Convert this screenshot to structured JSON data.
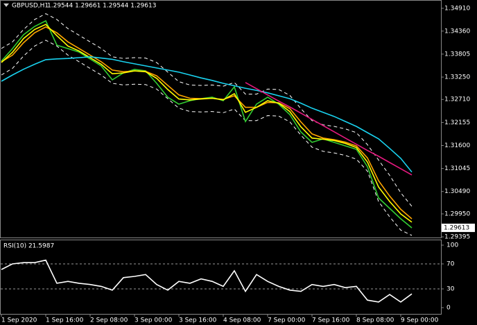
{
  "chart_data": [
    {
      "type": "line",
      "symbol": "GBPUSD,H1",
      "quote": "1.29544 1.29661 1.29544 1.29613",
      "categories": [
        "1 Sep 2020",
        null,
        null,
        null,
        "1 Sep 16:00",
        null,
        null,
        null,
        "2 Sep 08:00",
        null,
        null,
        null,
        "3 Sep 00:00",
        null,
        null,
        null,
        "3 Sep 16:00",
        null,
        null,
        null,
        "4 Sep 08:00",
        null,
        null,
        null,
        "7 Sep 00:00",
        null,
        null,
        null,
        "7 Sep 16:00",
        null,
        null,
        null,
        "8 Sep 08:00",
        null,
        null,
        null,
        "9 Sep 00:00",
        null
      ],
      "ylim": [
        1.2938,
        1.3511
      ],
      "yticks": [
        {
          "value": 1.3491,
          "label": "1.34910"
        },
        {
          "value": 1.3436,
          "label": "1.34360"
        },
        {
          "value": 1.33805,
          "label": "1.33805"
        },
        {
          "value": 1.3325,
          "label": "1.33250"
        },
        {
          "value": 1.3271,
          "label": "1.32710"
        },
        {
          "value": 1.32155,
          "label": "1.32155"
        },
        {
          "value": 1.316,
          "label": "1.31600"
        },
        {
          "value": 1.31045,
          "label": "1.31045"
        },
        {
          "value": 1.3049,
          "label": "1.30490"
        },
        {
          "value": 1.2995,
          "label": "1.29950"
        },
        {
          "value": 1.29395,
          "label": "1.29395"
        }
      ],
      "last_price": 1.29613,
      "series": [
        {
          "color": "#ffffff",
          "dashed": true,
          "values": [
            1.3394,
            1.341,
            1.344,
            1.3464,
            1.3478,
            1.3464,
            1.3442,
            1.3426,
            1.341,
            1.3394,
            1.3374,
            1.337,
            1.3372,
            1.3371,
            1.336,
            1.3337,
            1.3314,
            1.3306,
            1.3305,
            1.3306,
            1.3303,
            1.3312,
            1.3284,
            1.3284,
            1.3296,
            1.3295,
            1.3281,
            1.3249,
            1.322,
            1.321,
            1.3206,
            1.32,
            1.3191,
            1.3162,
            1.3125,
            1.3088,
            1.3046,
            1.3013
          ]
        },
        {
          "color": "#ffffff",
          "dashed": true,
          "values": [
            1.333,
            1.3346,
            1.3376,
            1.34,
            1.3414,
            1.34,
            1.3378,
            1.3362,
            1.3346,
            1.333,
            1.331,
            1.3306,
            1.3308,
            1.3307,
            1.3296,
            1.3273,
            1.325,
            1.3242,
            1.3241,
            1.3242,
            1.3239,
            1.3248,
            1.322,
            1.322,
            1.3232,
            1.3231,
            1.3217,
            1.3185,
            1.3156,
            1.3146,
            1.3142,
            1.3136,
            1.3127,
            1.3098,
            1.3025,
            1.2988,
            1.2956,
            1.2943
          ]
        },
        {
          "color": "#32cd32",
          "values": [
            1.33636,
            1.33937,
            1.34272,
            1.34473,
            1.34607,
            1.34021,
            1.33937,
            1.33853,
            1.33686,
            1.33518,
            1.33183,
            1.33351,
            1.33435,
            1.33401,
            1.331,
            1.32764,
            1.32597,
            1.32681,
            1.32731,
            1.32764,
            1.32681,
            1.33016,
            1.32178,
            1.32597,
            1.32764,
            1.32597,
            1.32346,
            1.31927,
            1.31676,
            1.31759,
            1.31676,
            1.31592,
            1.31508,
            1.31089,
            1.30335,
            1.30084,
            1.29833,
            1.29613
          ]
        },
        {
          "color": "#ffa500",
          "values": [
            1.3362,
            1.3378,
            1.3408,
            1.3432,
            1.3446,
            1.3432,
            1.341,
            1.3394,
            1.3378,
            1.3362,
            1.3342,
            1.3338,
            1.334,
            1.3339,
            1.3328,
            1.3305,
            1.3282,
            1.3274,
            1.3273,
            1.3274,
            1.3271,
            1.328,
            1.3252,
            1.3252,
            1.3264,
            1.3263,
            1.3249,
            1.3217,
            1.3188,
            1.3178,
            1.3174,
            1.3168,
            1.3159,
            1.313,
            1.3075,
            1.3038,
            1.3006,
            1.2983
          ]
        },
        {
          "color": "#ffff00",
          "values": [
            1.336,
            1.3385,
            1.3418,
            1.344,
            1.3452,
            1.3425,
            1.34,
            1.3388,
            1.3372,
            1.3356,
            1.3333,
            1.3335,
            1.334,
            1.3338,
            1.3322,
            1.3295,
            1.3272,
            1.327,
            1.3272,
            1.3274,
            1.327,
            1.3285,
            1.324,
            1.3252,
            1.3268,
            1.3262,
            1.3242,
            1.3205,
            1.3178,
            1.3175,
            1.3172,
            1.3165,
            1.3155,
            1.312,
            1.306,
            1.3025,
            1.2995,
            1.2975
          ]
        },
        {
          "color": "#19d3f0",
          "values": [
            1.3315,
            1.333,
            1.3344,
            1.3356,
            1.3367,
            1.3369,
            1.337,
            1.3372,
            1.3374,
            1.3371,
            1.3368,
            1.3362,
            1.3357,
            1.3352,
            1.3347,
            1.3342,
            1.3337,
            1.333,
            1.3323,
            1.3317,
            1.331,
            1.3304,
            1.3298,
            1.3293,
            1.3287,
            1.328,
            1.3273,
            1.3262,
            1.325,
            1.324,
            1.323,
            1.3218,
            1.3206,
            1.3191,
            1.3176,
            1.3153,
            1.3129,
            1.3096
          ]
        },
        {
          "color": "#e6197f",
          "values": [
            null,
            null,
            null,
            null,
            null,
            null,
            null,
            null,
            null,
            null,
            null,
            null,
            null,
            null,
            null,
            null,
            null,
            null,
            null,
            null,
            null,
            null,
            1.3312,
            1.3297,
            1.3282,
            1.3267,
            1.3253,
            1.3238,
            1.3223,
            1.3208,
            1.3193,
            1.3178,
            1.3163,
            1.3148,
            1.3134,
            1.3119,
            1.3104,
            1.3089
          ]
        }
      ]
    },
    {
      "type": "line",
      "title": "RSI(10) 21.5987",
      "color": "#ffffff",
      "ylim": [
        0,
        100
      ],
      "yticks": [
        100,
        70,
        30,
        0
      ],
      "levels": [
        70,
        30
      ],
      "values": [
        61,
        70,
        72,
        72,
        76,
        39,
        42,
        39,
        37,
        34,
        28,
        48,
        50,
        53,
        37,
        28,
        42,
        39,
        46,
        42,
        34,
        59,
        26,
        53,
        42,
        34,
        28,
        26,
        37,
        34,
        37,
        32,
        34,
        12,
        9,
        21,
        9,
        22
      ]
    }
  ]
}
